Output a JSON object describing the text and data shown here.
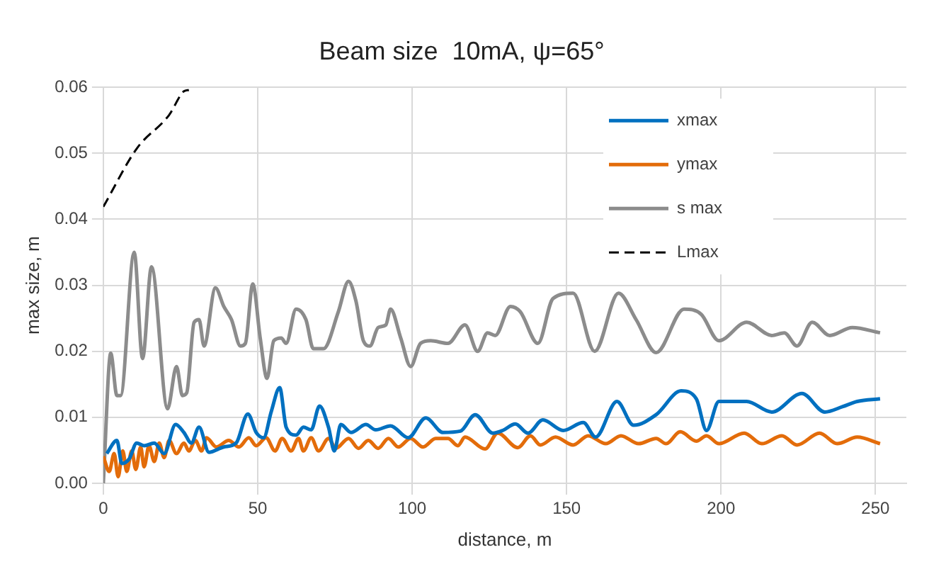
{
  "chart_data": {
    "type": "line",
    "title": "Beam size  10mA, ψ=65°",
    "xlabel": "distance, m",
    "ylabel": "max size, m",
    "xlim": [
      0,
      260
    ],
    "xticks": [
      0,
      50,
      100,
      150,
      200,
      250
    ],
    "ylim": [
      0,
      0.06
    ],
    "yticks": [
      {
        "value": 0,
        "label": "0.00"
      },
      0.01,
      0.02,
      0.03,
      0.04,
      0.05,
      0.06
    ],
    "grid": true,
    "legend": "top right",
    "marker": "none",
    "series": [
      {
        "name": "xmax",
        "color": "#0070c0",
        "x": [
          1.1,
          4.4,
          6,
          8.4,
          10.8,
          13.2,
          16.5,
          19.7,
          23.4,
          26.1,
          28.5,
          31,
          34.2,
          39,
          43,
          46.8,
          49.5,
          51.9,
          54.4,
          57.1,
          59.2,
          62.4,
          64.8,
          67.3,
          70,
          72.9,
          74.8,
          76.9,
          80.2,
          85,
          88.2,
          93,
          98.7,
          104.4,
          110,
          115.6,
          120.4,
          126.1,
          129.3,
          133.4,
          137.5,
          142.3,
          148.9,
          155.4,
          159.4,
          166.3,
          171.7,
          179,
          187.1,
          192,
          195.3,
          199.3,
          208.3,
          216.4,
          226.2,
          233.6,
          239.3,
          244.1,
          251.5
        ],
        "values": [
          0.0045,
          0.0065,
          0.003,
          0.0037,
          0.0061,
          0.0057,
          0.0061,
          0.0045,
          0.0089,
          0.0077,
          0.0061,
          0.0085,
          0.0047,
          0.0055,
          0.0061,
          0.0105,
          0.0077,
          0.0069,
          0.0109,
          0.0145,
          0.0085,
          0.0073,
          0.0085,
          0.0081,
          0.0117,
          0.0085,
          0.0049,
          0.0089,
          0.0077,
          0.0089,
          0.0081,
          0.0087,
          0.0069,
          0.0099,
          0.0077,
          0.0079,
          0.0104,
          0.0076,
          0.008,
          0.009,
          0.0076,
          0.0096,
          0.008,
          0.0092,
          0.007,
          0.0124,
          0.0088,
          0.0104,
          0.014,
          0.0128,
          0.008,
          0.0124,
          0.0124,
          0.0108,
          0.0136,
          0.0108,
          0.0116,
          0.0124,
          0.0128
        ]
      },
      {
        "name": "ymax",
        "color": "#e36c0a",
        "x": [
          0,
          1.9,
          3.5,
          4.8,
          6.3,
          7.6,
          9.2,
          10.5,
          12.1,
          13.2,
          14.8,
          16.5,
          18.1,
          19.7,
          21.3,
          23.7,
          26.1,
          27.7,
          29.8,
          31.8,
          33.4,
          36.6,
          40.6,
          43.9,
          47.1,
          49.5,
          52.7,
          55.6,
          57.9,
          60.8,
          63.2,
          64.8,
          67.3,
          69.7,
          72.9,
          75.3,
          79.4,
          82.6,
          85.8,
          89,
          92.3,
          95.5,
          99.5,
          103.5,
          107.6,
          111.6,
          114.8,
          117.1,
          123.6,
          127.7,
          134.2,
          138.3,
          141.5,
          146.4,
          152.1,
          157,
          162.7,
          167.6,
          173.3,
          179,
          182.2,
          186.8,
          192,
          195.3,
          199.3,
          207.5,
          213.2,
          219.7,
          224.6,
          231.9,
          237.6,
          244.1,
          251.5
        ],
        "values": [
          0.0041,
          0.0018,
          0.0045,
          0.001,
          0.0049,
          0.0018,
          0.0049,
          0.0021,
          0.0055,
          0.0025,
          0.0057,
          0.0033,
          0.0061,
          0.0039,
          0.0065,
          0.0045,
          0.0061,
          0.0049,
          0.0065,
          0.0049,
          0.0069,
          0.0055,
          0.0065,
          0.0055,
          0.0069,
          0.0057,
          0.0069,
          0.0049,
          0.0068,
          0.0049,
          0.0068,
          0.0049,
          0.0069,
          0.0049,
          0.0068,
          0.0053,
          0.0068,
          0.0053,
          0.0065,
          0.0053,
          0.0068,
          0.0055,
          0.0068,
          0.0055,
          0.0068,
          0.0068,
          0.0057,
          0.007,
          0.0052,
          0.0076,
          0.0054,
          0.0072,
          0.0058,
          0.007,
          0.0058,
          0.0072,
          0.006,
          0.0072,
          0.006,
          0.0068,
          0.006,
          0.0078,
          0.0064,
          0.0072,
          0.006,
          0.0076,
          0.006,
          0.0072,
          0.0058,
          0.0076,
          0.006,
          0.007,
          0.006
        ]
      },
      {
        "name": "s max",
        "color": "#8c8c8c",
        "x": [
          0,
          2.4,
          4.4,
          5.6,
          10,
          12.7,
          15.6,
          20.8,
          23.7,
          25.6,
          27,
          29.4,
          31,
          32.6,
          36.3,
          39,
          41.5,
          44.4,
          46,
          48.4,
          50.8,
          53,
          55.2,
          57.6,
          59.2,
          62.4,
          65.6,
          68,
          71.3,
          76.1,
          79.4,
          81.8,
          84.2,
          86.3,
          89,
          91.5,
          93,
          96.3,
          99.5,
          102.7,
          106,
          111.6,
          117.1,
          121.2,
          124.4,
          126.9,
          131.8,
          135,
          140.7,
          145.6,
          152.1,
          159.1,
          166.8,
          172.5,
          179,
          188,
          193.6,
          199.3,
          208.3,
          216.4,
          220.5,
          224.6,
          229.5,
          235.2,
          242.5,
          251.5
        ],
        "values": [
          0,
          0.0197,
          0.0133,
          0.0133,
          0.035,
          0.0189,
          0.0328,
          0.0113,
          0.0177,
          0.0133,
          0.0137,
          0.0244,
          0.0248,
          0.0208,
          0.0296,
          0.0268,
          0.0248,
          0.0208,
          0.0212,
          0.0302,
          0.022,
          0.0159,
          0.0216,
          0.022,
          0.0212,
          0.0264,
          0.0248,
          0.0204,
          0.0204,
          0.026,
          0.0306,
          0.0276,
          0.0216,
          0.0208,
          0.0236,
          0.024,
          0.0264,
          0.022,
          0.0177,
          0.0212,
          0.0216,
          0.0212,
          0.024,
          0.02,
          0.0228,
          0.0224,
          0.0268,
          0.026,
          0.0212,
          0.028,
          0.0288,
          0.02,
          0.0288,
          0.0248,
          0.0198,
          0.0264,
          0.0256,
          0.0216,
          0.0244,
          0.0224,
          0.0228,
          0.0208,
          0.0244,
          0.0224,
          0.0236,
          0.0228
        ]
      },
      {
        "name": "Lmax",
        "color": "#000000",
        "line_style": "dashed",
        "x": [
          0,
          10.8,
          21.3,
          26.1,
          27.7
        ],
        "values": [
          0.0419,
          0.0507,
          0.0558,
          0.0594,
          0.0596
        ]
      }
    ]
  }
}
